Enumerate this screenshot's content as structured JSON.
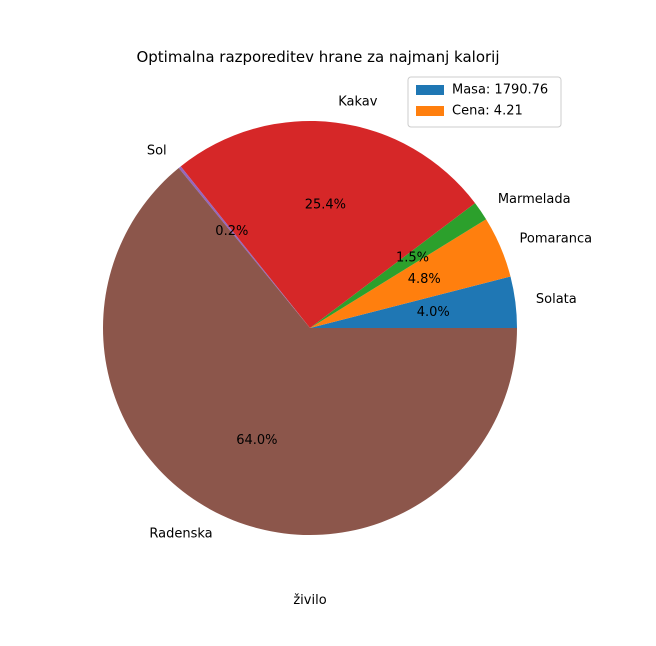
{
  "chart_data": {
    "type": "pie",
    "title": "Optimalna razporeditev hrane za najmanj kalorij",
    "xlabel": "živilo",
    "slices": [
      {
        "label": "Solata",
        "percent": 4.0,
        "pct_text": "4.0%",
        "color": "#1f77b4"
      },
      {
        "label": "Pomaranca",
        "percent": 4.8,
        "pct_text": "4.8%",
        "color": "#ff7f0e"
      },
      {
        "label": "Marmelada",
        "percent": 1.5,
        "pct_text": "1.5%",
        "color": "#2ca02c"
      },
      {
        "label": "Kakav",
        "percent": 25.4,
        "pct_text": "25.4%",
        "color": "#d62728"
      },
      {
        "label": "Sol",
        "percent": 0.2,
        "pct_text": "0.2%",
        "color": "#9467bd"
      },
      {
        "label": "Radenska",
        "percent": 64.0,
        "pct_text": "64.0%",
        "color": "#8c564b"
      }
    ],
    "legend": {
      "placement": "top-right",
      "entries": [
        {
          "text": "Masa: 1790.76",
          "color": "#1f77b4"
        },
        {
          "text": "Cena: 4.21",
          "color": "#ff7f0e"
        }
      ]
    }
  }
}
